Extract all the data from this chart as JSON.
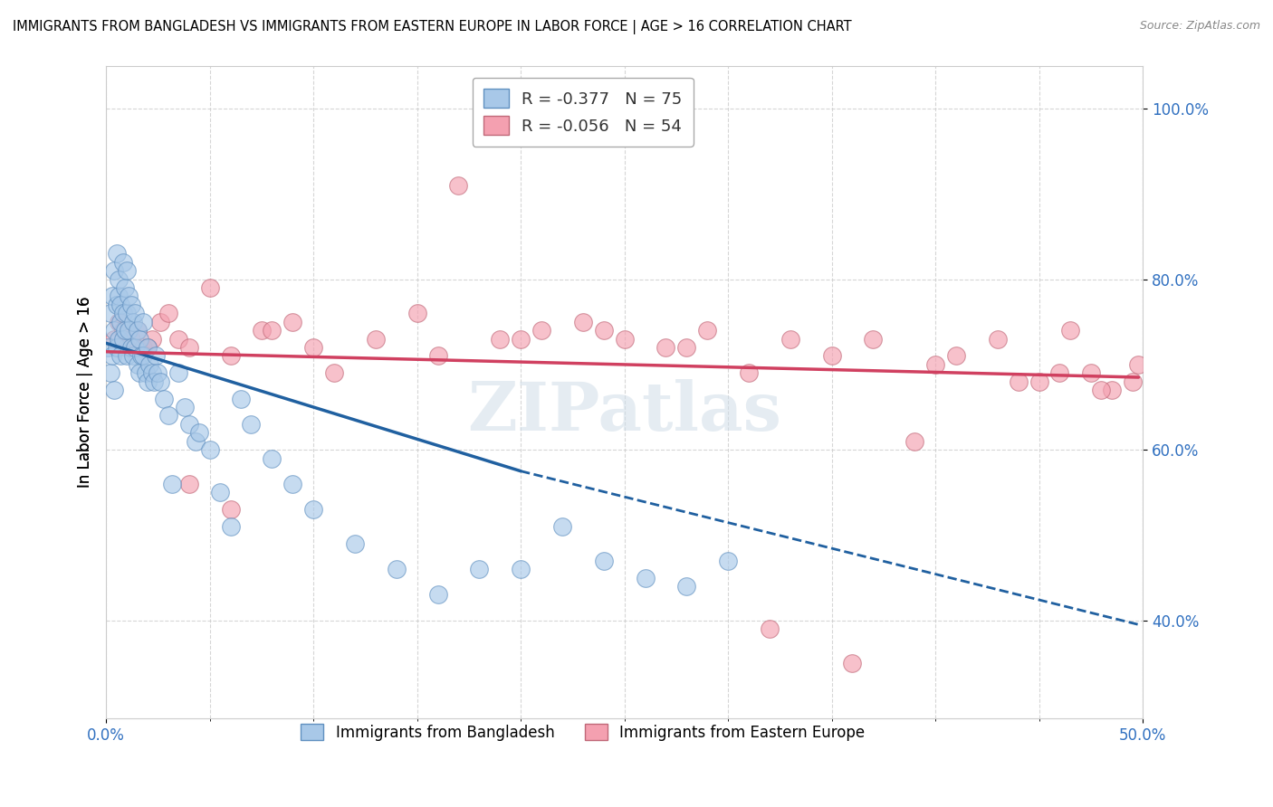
{
  "title": "IMMIGRANTS FROM BANGLADESH VS IMMIGRANTS FROM EASTERN EUROPE IN LABOR FORCE | AGE > 16 CORRELATION CHART",
  "source": "Source: ZipAtlas.com",
  "ylabel": "In Labor Force | Age > 16",
  "ytick_vals": [
    0.4,
    0.6,
    0.8,
    1.0
  ],
  "xlim": [
    0.0,
    0.5
  ],
  "ylim": [
    0.285,
    1.05
  ],
  "legend_r_bangladesh": "-0.377",
  "legend_n_bangladesh": "75",
  "legend_r_eastern": "-0.056",
  "legend_n_eastern": "54",
  "color_bangladesh": "#a8c8e8",
  "color_eastern": "#f4a0b0",
  "color_trend_bangladesh": "#2060a0",
  "color_trend_eastern": "#d04060",
  "watermark": "ZIPatlas",
  "bangladesh_x": [
    0.001,
    0.002,
    0.002,
    0.003,
    0.003,
    0.004,
    0.004,
    0.004,
    0.005,
    0.005,
    0.005,
    0.006,
    0.006,
    0.006,
    0.007,
    0.007,
    0.007,
    0.008,
    0.008,
    0.008,
    0.009,
    0.009,
    0.01,
    0.01,
    0.01,
    0.011,
    0.011,
    0.012,
    0.012,
    0.013,
    0.013,
    0.014,
    0.014,
    0.015,
    0.015,
    0.016,
    0.016,
    0.017,
    0.018,
    0.018,
    0.019,
    0.02,
    0.02,
    0.021,
    0.022,
    0.023,
    0.024,
    0.025,
    0.026,
    0.028,
    0.03,
    0.032,
    0.035,
    0.038,
    0.04,
    0.043,
    0.045,
    0.05,
    0.055,
    0.06,
    0.065,
    0.07,
    0.08,
    0.09,
    0.1,
    0.12,
    0.14,
    0.16,
    0.18,
    0.2,
    0.22,
    0.24,
    0.26,
    0.28,
    0.3
  ],
  "bangladesh_y": [
    0.72,
    0.69,
    0.76,
    0.71,
    0.78,
    0.74,
    0.67,
    0.81,
    0.77,
    0.72,
    0.83,
    0.78,
    0.73,
    0.8,
    0.75,
    0.71,
    0.77,
    0.82,
    0.76,
    0.73,
    0.79,
    0.74,
    0.81,
    0.76,
    0.71,
    0.78,
    0.74,
    0.77,
    0.72,
    0.75,
    0.71,
    0.76,
    0.72,
    0.74,
    0.7,
    0.73,
    0.69,
    0.71,
    0.75,
    0.71,
    0.69,
    0.72,
    0.68,
    0.7,
    0.69,
    0.68,
    0.71,
    0.69,
    0.68,
    0.66,
    0.64,
    0.56,
    0.69,
    0.65,
    0.63,
    0.61,
    0.62,
    0.6,
    0.55,
    0.51,
    0.66,
    0.63,
    0.59,
    0.56,
    0.53,
    0.49,
    0.46,
    0.43,
    0.46,
    0.46,
    0.51,
    0.47,
    0.45,
    0.44,
    0.47
  ],
  "eastern_x": [
    0.004,
    0.006,
    0.008,
    0.01,
    0.012,
    0.015,
    0.018,
    0.022,
    0.026,
    0.03,
    0.035,
    0.04,
    0.05,
    0.06,
    0.075,
    0.09,
    0.11,
    0.13,
    0.15,
    0.17,
    0.19,
    0.21,
    0.23,
    0.25,
    0.27,
    0.29,
    0.31,
    0.33,
    0.35,
    0.37,
    0.39,
    0.41,
    0.43,
    0.45,
    0.465,
    0.475,
    0.485,
    0.495,
    0.02,
    0.04,
    0.06,
    0.08,
    0.1,
    0.16,
    0.2,
    0.24,
    0.28,
    0.32,
    0.36,
    0.4,
    0.44,
    0.46,
    0.48,
    0.498
  ],
  "eastern_y": [
    0.73,
    0.75,
    0.74,
    0.72,
    0.73,
    0.74,
    0.72,
    0.73,
    0.75,
    0.76,
    0.73,
    0.72,
    0.79,
    0.71,
    0.74,
    0.75,
    0.69,
    0.73,
    0.76,
    0.91,
    0.73,
    0.74,
    0.75,
    0.73,
    0.72,
    0.74,
    0.69,
    0.73,
    0.71,
    0.73,
    0.61,
    0.71,
    0.73,
    0.68,
    0.74,
    0.69,
    0.67,
    0.68,
    0.72,
    0.56,
    0.53,
    0.74,
    0.72,
    0.71,
    0.73,
    0.74,
    0.72,
    0.39,
    0.35,
    0.7,
    0.68,
    0.69,
    0.67,
    0.7
  ],
  "trend_b_x0": 0.0,
  "trend_b_y0": 0.725,
  "trend_b_x1": 0.2,
  "trend_b_y1": 0.575,
  "trend_b_dash_x1": 0.498,
  "trend_b_dash_y1": 0.395,
  "trend_e_x0": 0.0,
  "trend_e_y0": 0.715,
  "trend_e_x1": 0.498,
  "trend_e_y1": 0.685
}
